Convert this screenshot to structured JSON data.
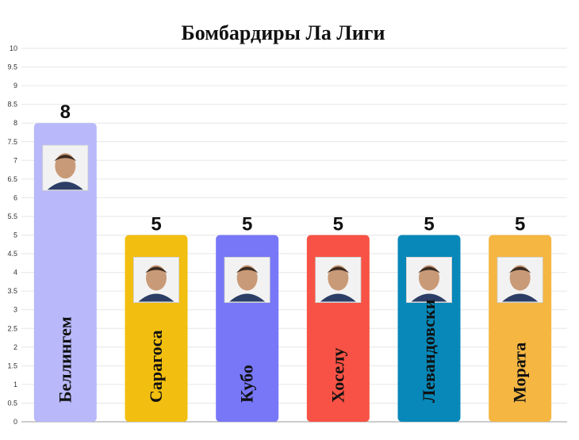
{
  "chart_data": {
    "type": "bar",
    "title": "Бомбардиры Ла Лиги",
    "xlabel": "",
    "ylabel": "",
    "ylim": [
      0,
      10
    ],
    "yticks": [
      "0",
      "0.5",
      "1",
      "1.5",
      "2",
      "2.5",
      "3",
      "3.5",
      "4",
      "4.5",
      "5",
      "5.5",
      "6",
      "6.5",
      "7",
      "7.5",
      "8",
      "8.5",
      "9",
      "9.5",
      "10"
    ],
    "grid": true,
    "categories": [
      "Беллингем",
      "Сарагоса",
      "Кубо",
      "Хоселу",
      "Левандовски",
      "Мората"
    ],
    "values": [
      8,
      5,
      5,
      5,
      5,
      5
    ],
    "data_labels": [
      "8",
      "5",
      "5",
      "5",
      "5",
      "5"
    ],
    "colors": [
      "#b8b8fb",
      "#f2bf10",
      "#7777f8",
      "#f75245",
      "#0788b8",
      "#f5b642"
    ]
  },
  "icons": [
    "player-photo-icon"
  ]
}
